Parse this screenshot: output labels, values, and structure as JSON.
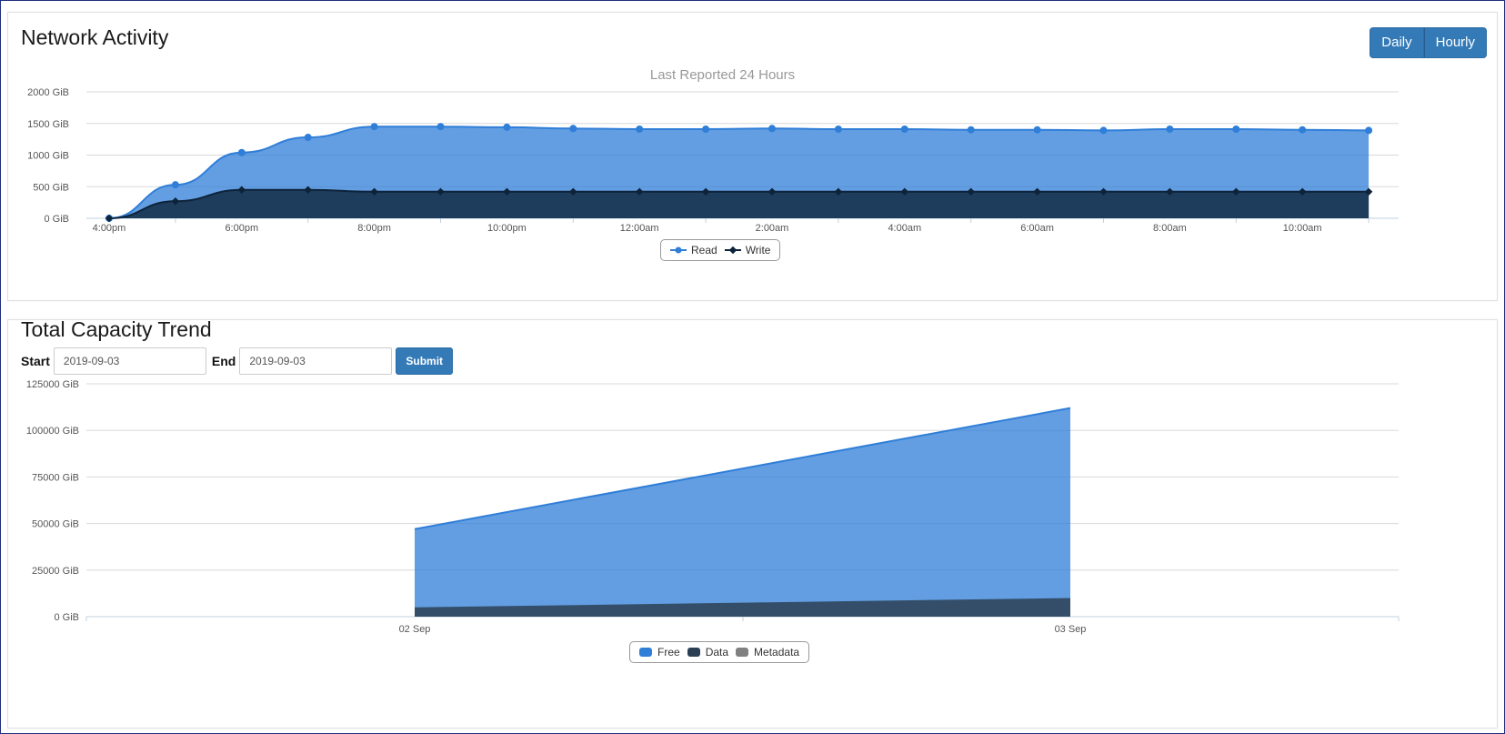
{
  "network": {
    "title": "Network Activity",
    "buttons": {
      "daily": "Daily",
      "hourly": "Hourly"
    },
    "subtitle": "Last Reported 24 Hours"
  },
  "capacity": {
    "title": "Total Capacity Trend",
    "start_label": "Start",
    "start_value": "2019-09-03",
    "end_label": "End",
    "end_value": "2019-09-03",
    "submit_label": "Submit"
  },
  "chart_data": [
    {
      "type": "area",
      "title": "Last Reported 24 Hours",
      "xlabel": "",
      "ylabel": "",
      "ylim": [
        0,
        2000
      ],
      "yticks": [
        "0 GiB",
        "500 GiB",
        "1000 GiB",
        "1500 GiB",
        "2000 GiB"
      ],
      "ytick_values": [
        0,
        500,
        1000,
        1500,
        2000
      ],
      "x": [
        "4:00pm",
        "5:00pm",
        "6:00pm",
        "7:00pm",
        "8:00pm",
        "9:00pm",
        "10:00pm",
        "11:00pm",
        "12:00am",
        "1:00am",
        "2:00am",
        "3:00am",
        "4:00am",
        "5:00am",
        "6:00am",
        "7:00am",
        "8:00am",
        "9:00am",
        "10:00am",
        "11:00am"
      ],
      "xtick_labels": [
        "4:00pm",
        "6:00pm",
        "8:00pm",
        "10:00pm",
        "12:00am",
        "2:00am",
        "4:00am",
        "6:00am",
        "8:00am",
        "10:00am"
      ],
      "series": [
        {
          "name": "Read",
          "color": "#2f7ed8",
          "values": [
            0,
            530,
            1040,
            1280,
            1450,
            1450,
            1440,
            1420,
            1410,
            1410,
            1420,
            1410,
            1410,
            1400,
            1400,
            1390,
            1410,
            1410,
            1400,
            1390
          ]
        },
        {
          "name": "Write",
          "color": "#0d233a",
          "values": [
            0,
            270,
            450,
            450,
            420,
            420,
            420,
            420,
            420,
            420,
            420,
            420,
            420,
            420,
            420,
            420,
            420,
            420,
            420,
            420
          ]
        }
      ],
      "grid": true,
      "legend": "bottom-center"
    },
    {
      "type": "area",
      "title": "",
      "xlabel": "",
      "ylabel": "",
      "ylim": [
        0,
        125000
      ],
      "yticks": [
        "0 GiB",
        "25000 GiB",
        "50000 GiB",
        "75000 GiB",
        "100000 GiB",
        "125000 GiB"
      ],
      "ytick_values": [
        0,
        25000,
        50000,
        75000,
        100000,
        125000
      ],
      "x": [
        "02 Sep",
        "03 Sep"
      ],
      "series": [
        {
          "name": "Free",
          "color": "#2f7ed8",
          "values": [
            47000,
            112000
          ]
        },
        {
          "name": "Data",
          "color": "#2b3f54",
          "values": [
            5000,
            10000
          ]
        },
        {
          "name": "Metadata",
          "color": "#808080",
          "values": [
            0,
            0
          ]
        }
      ],
      "grid": true,
      "legend": "bottom-center"
    }
  ]
}
